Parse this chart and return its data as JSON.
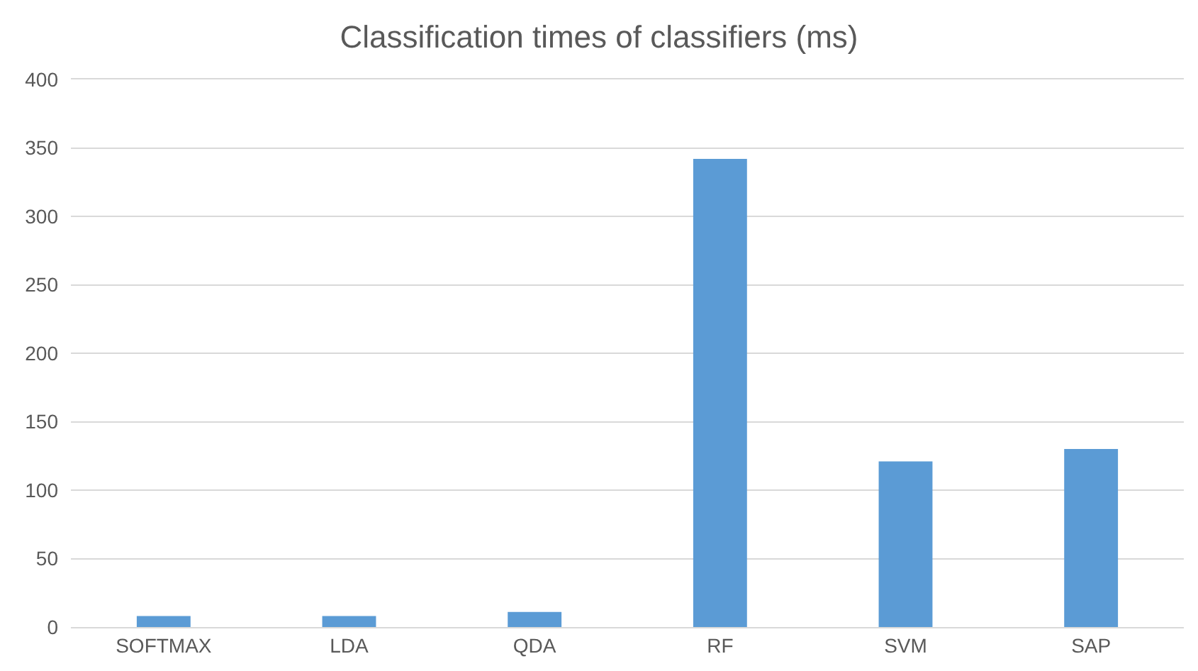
{
  "chart_data": {
    "type": "bar",
    "title": "Classification times of classifiers (ms)",
    "categories": [
      "SOFTMAX",
      "LDA",
      "QDA",
      "RF",
      "SVM",
      "SAP"
    ],
    "values": [
      8,
      8,
      11,
      342,
      121,
      130
    ],
    "color": "#5b9bd5",
    "ylim": [
      0,
      400
    ],
    "yticks": [
      0,
      50,
      100,
      150,
      200,
      250,
      300,
      350,
      400
    ],
    "grid": "y"
  }
}
